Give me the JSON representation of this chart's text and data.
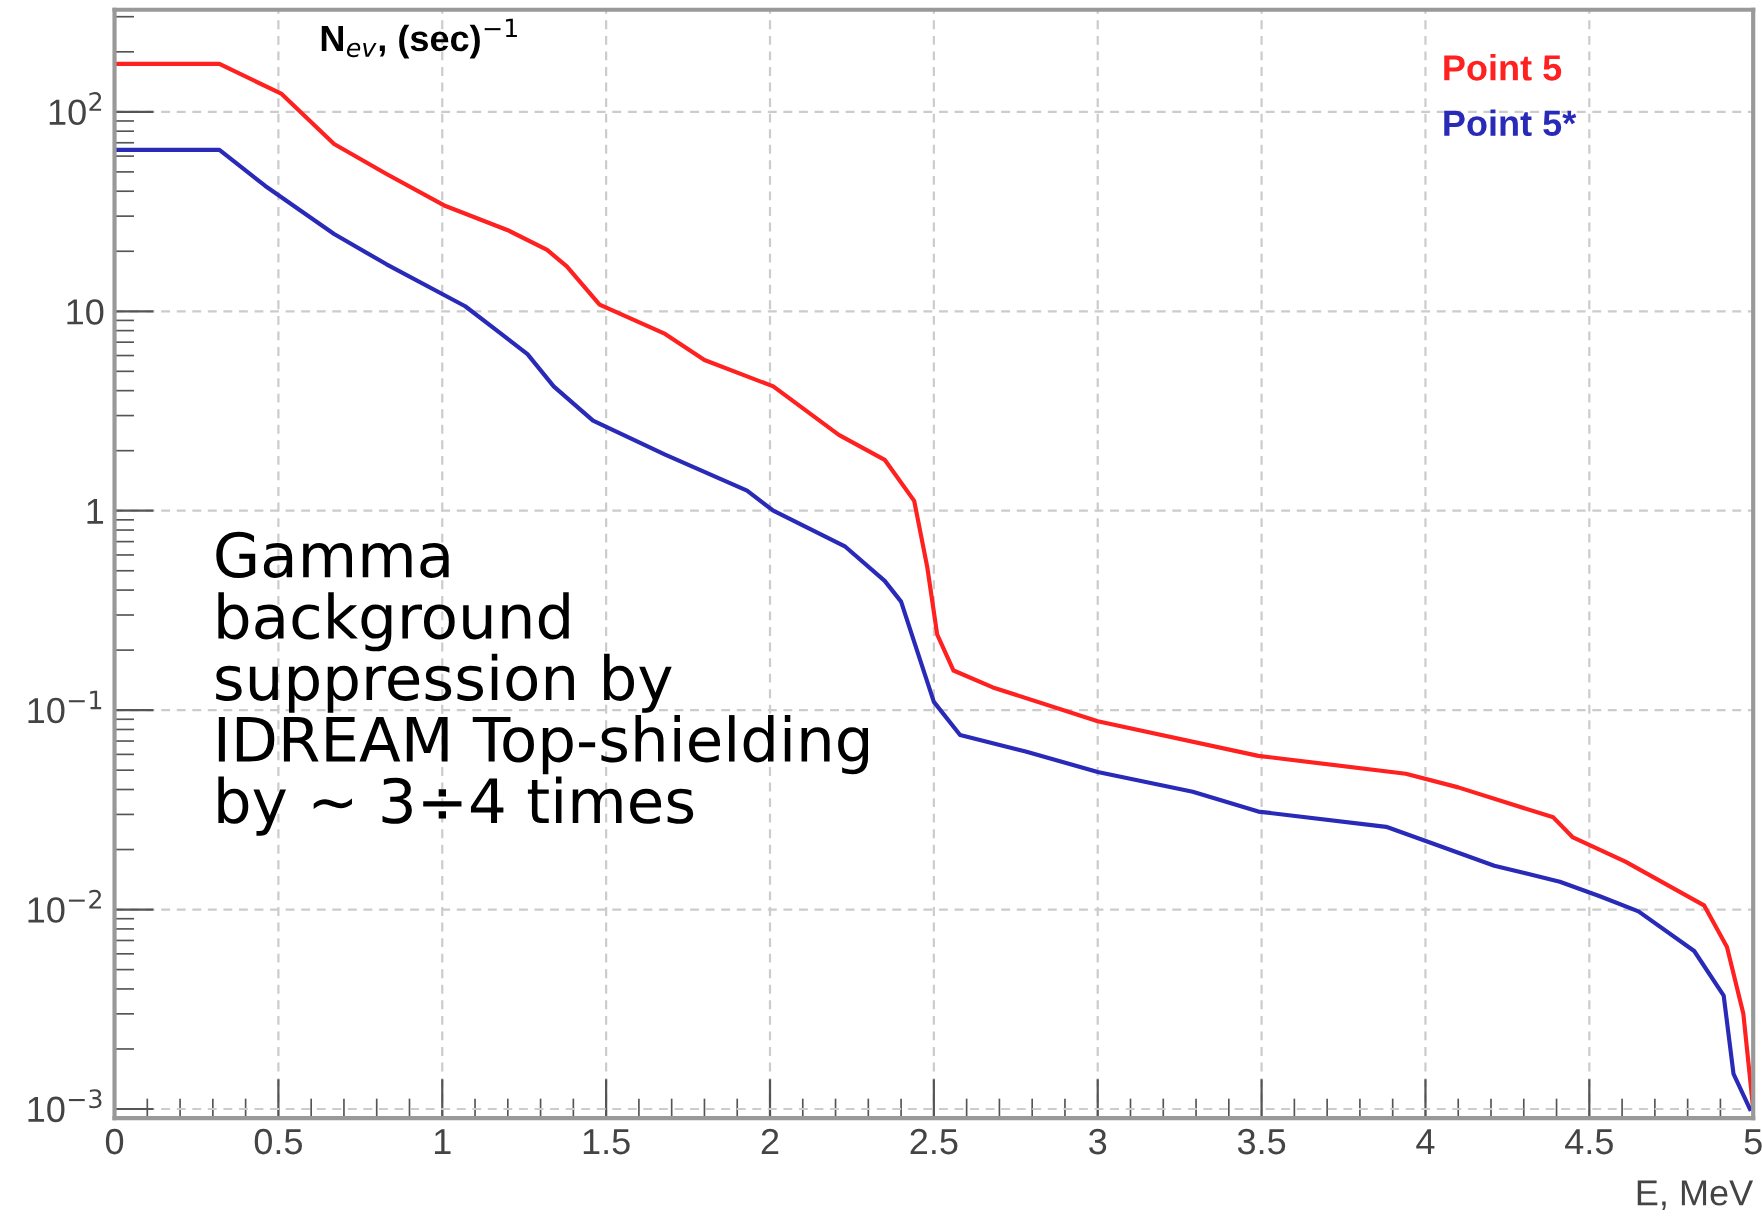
{
  "chart_data": {
    "type": "line",
    "ylabel": "N$_{ev}$, (sec)$^{−1}$",
    "xlabel": "E, MeV",
    "annotations": [
      "Gamma\nbackground\nsuppression by\nIDREAM Top-shielding\nby ~ 3÷4 times"
    ],
    "log": "y",
    "xlim": [
      0,
      5
    ],
    "xticks": [
      0,
      0.5,
      1,
      1.5,
      2,
      2.5,
      3,
      3.5,
      4,
      4.5,
      5
    ],
    "ylim": [
      0.0009,
      325
    ],
    "yticks": [
      {
        "value": 100,
        "label": "10$^{2}$"
      },
      10,
      1,
      {
        "value": 0.1,
        "label": "10$^{−1}$"
      },
      {
        "value": 0.01,
        "label": "10$^{−2}$"
      },
      {
        "value": 0.001,
        "label": "10$^{−3}$"
      }
    ],
    "grid": true,
    "line_style": "solid",
    "legend": "top right",
    "series": [
      {
        "name": "Point 5",
        "color": "#ff2020",
        "x": [
          0,
          0.32,
          0.51,
          0.67,
          0.83,
          1.01,
          1.2,
          1.32,
          1.38,
          1.48,
          1.68,
          1.8,
          2.01,
          2.21,
          2.35,
          2.44,
          2.48,
          2.51,
          2.56,
          2.68,
          3.0,
          3.49,
          3.94,
          4.1,
          4.39,
          4.45,
          4.61,
          4.85,
          4.92,
          4.97,
          5.0
        ],
        "values": [
          174,
          174,
          123,
          69,
          48.8,
          33.7,
          25.5,
          20.3,
          16.8,
          10.8,
          7.7,
          5.7,
          4.2,
          2.4,
          1.8,
          1.12,
          0.52,
          0.24,
          0.158,
          0.13,
          0.088,
          0.059,
          0.048,
          0.041,
          0.029,
          0.023,
          0.0174,
          0.0105,
          0.0065,
          0.003,
          0.001
        ]
      },
      {
        "name": "Point 5*",
        "color": "#2a2ab8",
        "x": [
          0,
          0.32,
          0.46,
          0.67,
          0.83,
          1.07,
          1.18,
          1.26,
          1.34,
          1.46,
          1.68,
          1.93,
          2.01,
          2.23,
          2.35,
          2.4,
          2.44,
          2.5,
          2.58,
          2.78,
          3.0,
          3.29,
          3.49,
          3.88,
          4.02,
          4.21,
          4.41,
          4.53,
          4.65,
          4.82,
          4.91,
          4.94,
          4.99
        ],
        "values": [
          64.5,
          64.5,
          42.5,
          24.4,
          17.2,
          10.6,
          7.7,
          6.1,
          4.2,
          2.83,
          1.91,
          1.26,
          1.0,
          0.66,
          0.445,
          0.35,
          0.22,
          0.11,
          0.075,
          0.062,
          0.049,
          0.039,
          0.031,
          0.026,
          0.0215,
          0.0166,
          0.0138,
          0.0117,
          0.0098,
          0.0062,
          0.0037,
          0.0015,
          0.001
        ]
      }
    ]
  }
}
